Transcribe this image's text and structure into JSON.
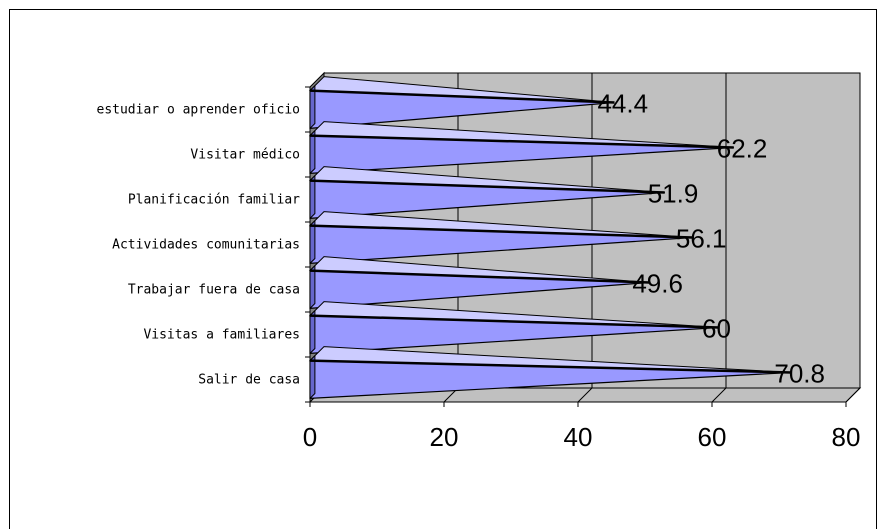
{
  "chart_data": {
    "type": "bar",
    "orientation": "horizontal",
    "categories": [
      "Salir de casa",
      "Visitas a familiares",
      "Trabajar fuera de casa",
      "Actividades comunitarias",
      "Planificación familiar",
      "Visitar médico",
      "estudiar o aprender oficio"
    ],
    "values": [
      70.8,
      60,
      49.6,
      56.1,
      51.9,
      62.2,
      44.4
    ],
    "value_labels": [
      "70.8",
      "60",
      "49.6",
      "56.1",
      "51.9",
      "62.2",
      "44.4"
    ],
    "xlim": [
      0,
      80
    ],
    "xticks": [
      0,
      20,
      40,
      60,
      80
    ],
    "grid": true,
    "bar_color": "#9999ff",
    "plot_background": "#c0c0c0",
    "style": "3d-cone"
  }
}
